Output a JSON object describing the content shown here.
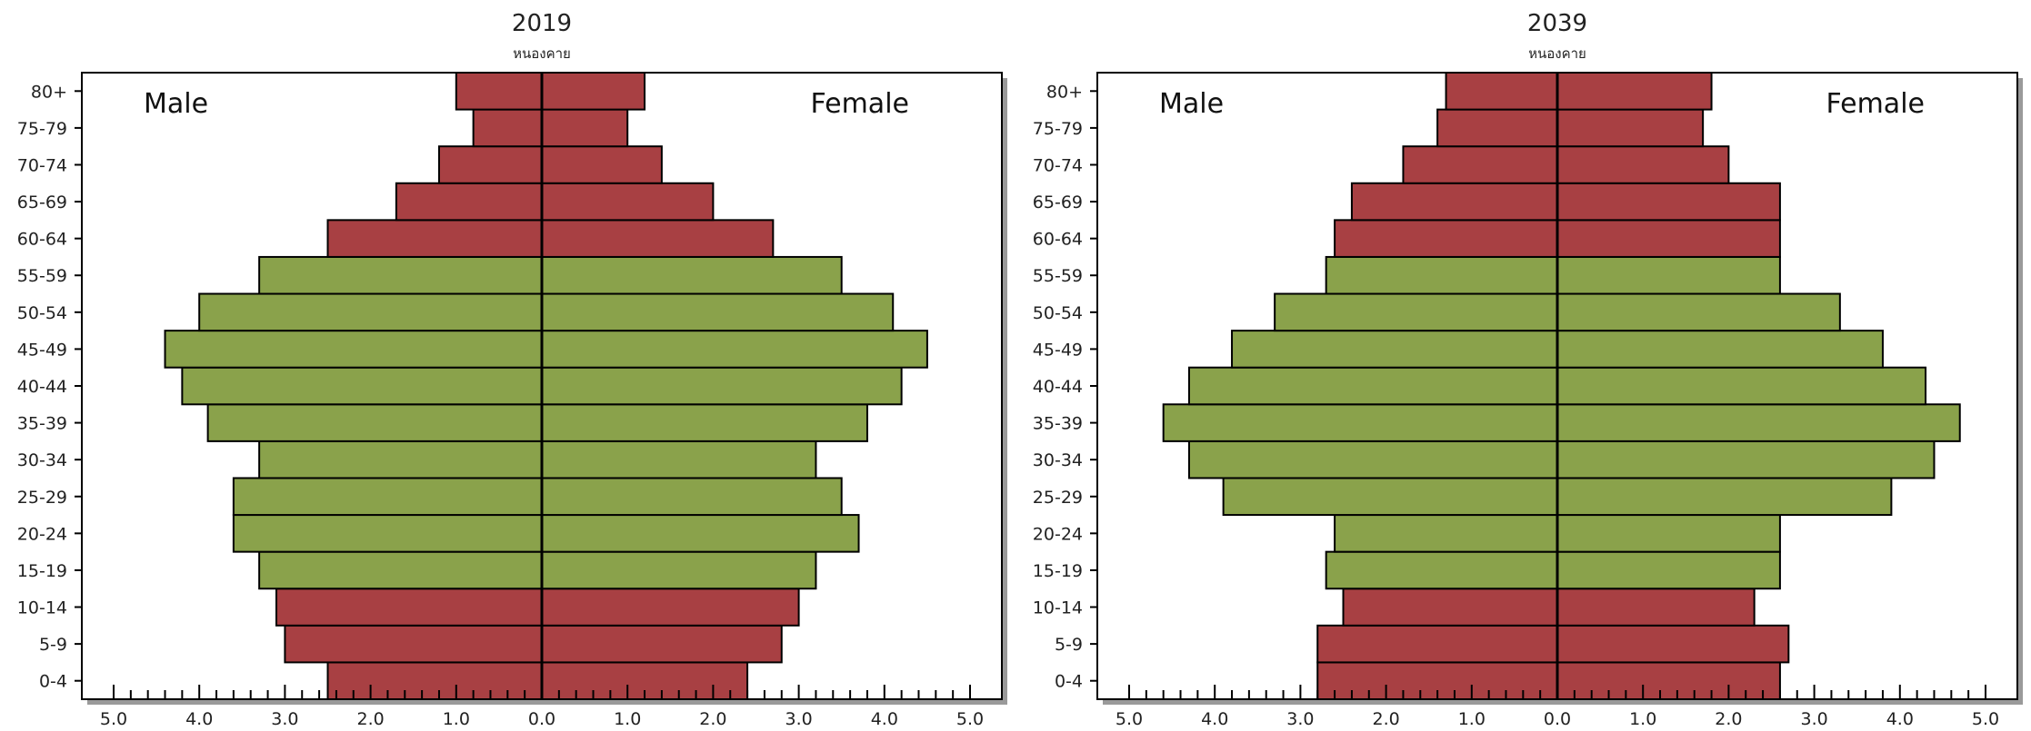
{
  "chart_data": [
    {
      "type": "bar",
      "orientation": "horizontal",
      "title": "2019",
      "subtitle": "หนองคาย",
      "male_label": "Male",
      "female_label": "Female",
      "categories": [
        "0-4",
        "5-9",
        "10-14",
        "15-19",
        "20-24",
        "25-29",
        "30-34",
        "35-39",
        "40-44",
        "45-49",
        "50-54",
        "55-59",
        "60-64",
        "65-69",
        "70-74",
        "75-79",
        "80+"
      ],
      "series": [
        {
          "name": "Male",
          "values": [
            2.5,
            3.0,
            3.1,
            3.3,
            3.6,
            3.6,
            3.3,
            3.9,
            4.2,
            4.4,
            4.0,
            3.3,
            2.5,
            1.7,
            1.2,
            0.8,
            1.0
          ]
        },
        {
          "name": "Female",
          "values": [
            2.4,
            2.8,
            3.0,
            3.2,
            3.7,
            3.5,
            3.2,
            3.8,
            4.2,
            4.5,
            4.1,
            3.5,
            2.7,
            2.0,
            1.4,
            1.0,
            1.2
          ]
        }
      ],
      "highlight_groups": [
        "15-19",
        "20-24",
        "25-29",
        "30-34",
        "35-39",
        "40-44",
        "45-49",
        "50-54",
        "55-59"
      ],
      "colors": {
        "base": "#a84043",
        "highlight": "#8aa24b"
      },
      "x_ticks": [
        "5.0",
        "4.0",
        "3.0",
        "2.0",
        "1.0",
        "0.0",
        "1.0",
        "2.0",
        "3.0",
        "4.0",
        "5.0"
      ],
      "xlim": [
        -5.0,
        5.0
      ]
    },
    {
      "type": "bar",
      "orientation": "horizontal",
      "title": "2039",
      "subtitle": "หนองคาย",
      "male_label": "Male",
      "female_label": "Female",
      "categories": [
        "0-4",
        "5-9",
        "10-14",
        "15-19",
        "20-24",
        "25-29",
        "30-34",
        "35-39",
        "40-44",
        "45-49",
        "50-54",
        "55-59",
        "60-64",
        "65-69",
        "70-74",
        "75-79",
        "80+"
      ],
      "series": [
        {
          "name": "Male",
          "values": [
            2.8,
            2.8,
            2.5,
            2.7,
            2.6,
            3.9,
            4.3,
            4.6,
            4.3,
            3.8,
            3.3,
            2.7,
            2.6,
            2.4,
            1.8,
            1.4,
            1.3
          ]
        },
        {
          "name": "Female",
          "values": [
            2.6,
            2.7,
            2.3,
            2.6,
            2.6,
            3.9,
            4.4,
            4.7,
            4.3,
            3.8,
            3.3,
            2.6,
            2.6,
            2.6,
            2.0,
            1.7,
            1.8
          ]
        }
      ],
      "highlight_groups": [
        "15-19",
        "20-24",
        "25-29",
        "30-34",
        "35-39",
        "40-44",
        "45-49",
        "50-54",
        "55-59"
      ],
      "colors": {
        "base": "#a84043",
        "highlight": "#8aa24b"
      },
      "x_ticks": [
        "5.0",
        "4.0",
        "3.0",
        "2.0",
        "1.0",
        "0.0",
        "1.0",
        "2.0",
        "3.0",
        "4.0",
        "5.0"
      ],
      "xlim": [
        -5.0,
        5.0
      ]
    }
  ]
}
